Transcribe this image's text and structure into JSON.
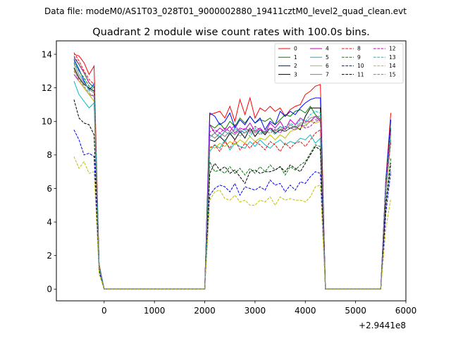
{
  "suptitle": "Data file: modeM0/AS1T03_028T01_9000002880_19411cztM0_level2_quad_clean.evt",
  "chart_data": {
    "type": "line",
    "title": "Quadrant 2 module wise count rates with 100.0s bins.",
    "xlabel": "",
    "ylabel": "",
    "x_offset_label": "+2.9441e8",
    "xlim": [
      -950,
      6000
    ],
    "ylim": [
      -0.7,
      14.8
    ],
    "xticks": [
      0,
      1000,
      2000,
      3000,
      4000,
      5000,
      6000
    ],
    "xtick_labels": [
      "0",
      "1000",
      "2000",
      "3000",
      "4000",
      "5000",
      "6000"
    ],
    "yticks": [
      0,
      2,
      4,
      6,
      8,
      10,
      12,
      14
    ],
    "ytick_labels": [
      "0",
      "2",
      "4",
      "6",
      "8",
      "10",
      "12",
      "14"
    ],
    "grid": false,
    "legend_position": "top-right",
    "x": [
      -600,
      -500,
      -400,
      -300,
      -200,
      -100,
      0,
      100,
      200,
      300,
      400,
      500,
      600,
      700,
      800,
      900,
      1000,
      1100,
      1200,
      1300,
      1400,
      1500,
      1600,
      1700,
      1800,
      1900,
      2000,
      2100,
      2200,
      2300,
      2400,
      2500,
      2600,
      2700,
      2800,
      2900,
      3000,
      3100,
      3200,
      3300,
      3400,
      3500,
      3600,
      3700,
      3800,
      3900,
      4000,
      4100,
      4200,
      4300,
      4400,
      4500,
      4600,
      4700,
      4800,
      4900,
      5000,
      5100,
      5200,
      5300,
      5400,
      5500,
      5600,
      5700
    ],
    "series": [
      {
        "name": "0",
        "color": "#ff0000",
        "dash": "solid",
        "values": [
          14.0,
          13.9,
          13.5,
          12.8,
          13.3,
          1.5,
          0,
          0,
          0,
          0,
          0,
          0,
          0,
          0,
          0,
          0,
          0,
          0,
          0,
          0,
          0,
          0,
          0,
          0,
          0,
          0,
          0,
          10.4,
          10.5,
          10.6,
          10.2,
          10.9,
          10.0,
          11.3,
          10.4,
          11.4,
          10.2,
          10.8,
          10.6,
          10.9,
          10.6,
          10.8,
          10.3,
          10.7,
          10.9,
          11.0,
          11.6,
          11.8,
          12.1,
          12.2,
          0,
          0,
          0,
          0,
          0,
          0,
          0,
          0,
          0,
          0,
          0,
          0,
          6.5,
          10.5
        ]
      },
      {
        "name": "1",
        "color": "#008000",
        "dash": "solid",
        "values": [
          13.8,
          13.4,
          12.9,
          12.3,
          12.0,
          1.4,
          0,
          0,
          0,
          0,
          0,
          0,
          0,
          0,
          0,
          0,
          0,
          0,
          0,
          0,
          0,
          0,
          0,
          0,
          0,
          0,
          0,
          9.8,
          9.6,
          9.9,
          9.5,
          10.0,
          9.7,
          10.2,
          9.9,
          10.3,
          9.9,
          10.1,
          10.0,
          10.2,
          9.8,
          10.1,
          10.4,
          10.3,
          10.6,
          10.7,
          10.5,
          10.9,
          10.4,
          10.1,
          0,
          0,
          0,
          0,
          0,
          0,
          0,
          0,
          0,
          0,
          0,
          0,
          6.0,
          9.6
        ]
      },
      {
        "name": "2",
        "color": "#0000ff",
        "dash": "solid",
        "values": [
          13.7,
          13.1,
          12.4,
          11.9,
          12.2,
          1.4,
          0,
          0,
          0,
          0,
          0,
          0,
          0,
          0,
          0,
          0,
          0,
          0,
          0,
          0,
          0,
          0,
          0,
          0,
          0,
          0,
          0,
          10.5,
          10.3,
          9.8,
          10.0,
          10.5,
          9.6,
          10.1,
          9.8,
          10.3,
          9.9,
          10.2,
          9.5,
          10.0,
          9.8,
          10.6,
          10.3,
          10.6,
          10.4,
          10.8,
          11.1,
          11.3,
          11.4,
          11.4,
          0,
          0,
          0,
          0,
          0,
          0,
          0,
          0,
          0,
          0,
          0,
          0,
          6.4,
          10.1
        ]
      },
      {
        "name": "3",
        "color": "#000000",
        "dash": "solid",
        "values": [
          13.2,
          12.6,
          12.2,
          12.0,
          11.8,
          1.4,
          0,
          0,
          0,
          0,
          0,
          0,
          0,
          0,
          0,
          0,
          0,
          0,
          0,
          0,
          0,
          0,
          0,
          0,
          0,
          0,
          0,
          8.9,
          8.8,
          9.1,
          8.8,
          9.3,
          8.9,
          9.4,
          9.0,
          9.6,
          9.1,
          9.5,
          9.2,
          9.6,
          9.3,
          9.5,
          9.4,
          9.6,
          9.7,
          9.5,
          10.3,
          10.8,
          10.8,
          10.8,
          0,
          0,
          0,
          0,
          0,
          0,
          0,
          0,
          0,
          0,
          0,
          0,
          6.2,
          9.6
        ]
      },
      {
        "name": "4",
        "color": "#bf00bf",
        "dash": "solid",
        "values": [
          12.8,
          12.4,
          12.0,
          11.6,
          11.5,
          1.3,
          0,
          0,
          0,
          0,
          0,
          0,
          0,
          0,
          0,
          0,
          0,
          0,
          0,
          0,
          0,
          0,
          0,
          0,
          0,
          0,
          0,
          9.8,
          9.3,
          9.6,
          9.4,
          9.7,
          9.3,
          9.6,
          9.5,
          9.9,
          9.4,
          9.6,
          9.3,
          9.9,
          9.6,
          10.0,
          9.5,
          10.1,
          9.8,
          10.2,
          10.0,
          10.0,
          10.3,
          10.0,
          0,
          0,
          0,
          0,
          0,
          0,
          0,
          0,
          0,
          0,
          0,
          0,
          6.1,
          9.4
        ]
      },
      {
        "name": "5",
        "color": "#00bfbf",
        "dash": "solid",
        "values": [
          12.4,
          11.6,
          11.2,
          10.8,
          11.1,
          1.3,
          0,
          0,
          0,
          0,
          0,
          0,
          0,
          0,
          0,
          0,
          0,
          0,
          0,
          0,
          0,
          0,
          0,
          0,
          0,
          0,
          0,
          8.2,
          8.6,
          8.4,
          8.9,
          8.3,
          8.7,
          8.5,
          8.4,
          8.8,
          8.5,
          8.9,
          8.6,
          8.4,
          8.7,
          8.9,
          8.6,
          8.8,
          8.7,
          9.0,
          8.9,
          9.2,
          8.7,
          9.0,
          0,
          0,
          0,
          0,
          0,
          0,
          0,
          0,
          0,
          0,
          0,
          0,
          5.8,
          8.9
        ]
      },
      {
        "name": "6",
        "color": "#bfbf00",
        "dash": "solid",
        "values": [
          13.1,
          12.4,
          12.0,
          11.6,
          11.2,
          1.3,
          0,
          0,
          0,
          0,
          0,
          0,
          0,
          0,
          0,
          0,
          0,
          0,
          0,
          0,
          0,
          0,
          0,
          0,
          0,
          0,
          0,
          8.5,
          8.4,
          8.7,
          8.5,
          8.8,
          8.6,
          8.9,
          8.7,
          9.1,
          8.8,
          9.0,
          8.9,
          9.2,
          8.9,
          9.2,
          9.0,
          9.4,
          9.5,
          9.6,
          9.8,
          10.0,
          9.9,
          10.0,
          0,
          0,
          0,
          0,
          0,
          0,
          0,
          0,
          0,
          0,
          0,
          0,
          6.0,
          9.2
        ]
      },
      {
        "name": "7",
        "color": "#808080",
        "dash": "solid",
        "values": [
          13.4,
          12.8,
          12.3,
          11.9,
          11.7,
          1.4,
          0,
          0,
          0,
          0,
          0,
          0,
          0,
          0,
          0,
          0,
          0,
          0,
          0,
          0,
          0,
          0,
          0,
          0,
          0,
          0,
          0,
          9.2,
          9.0,
          9.3,
          9.1,
          9.4,
          9.2,
          9.5,
          9.3,
          9.6,
          9.3,
          9.5,
          9.3,
          9.6,
          9.4,
          9.7,
          9.5,
          9.8,
          9.6,
          9.9,
          9.9,
          10.2,
          10.3,
          10.3,
          0,
          0,
          0,
          0,
          0,
          0,
          0,
          0,
          0,
          0,
          0,
          0,
          6.1,
          9.4
        ]
      },
      {
        "name": "8",
        "color": "#ff0000",
        "dash": "dashed",
        "values": [
          14.1,
          13.6,
          13.0,
          12.5,
          12.2,
          1.4,
          0,
          0,
          0,
          0,
          0,
          0,
          0,
          0,
          0,
          0,
          0,
          0,
          0,
          0,
          0,
          0,
          0,
          0,
          0,
          0,
          0,
          8.4,
          8.6,
          8.2,
          8.8,
          8.4,
          8.9,
          8.3,
          8.7,
          8.4,
          8.8,
          8.6,
          8.3,
          8.8,
          8.6,
          8.2,
          8.7,
          8.4,
          8.7,
          8.8,
          8.5,
          8.9,
          9.3,
          9.5,
          0,
          0,
          0,
          0,
          0,
          0,
          0,
          0,
          0,
          0,
          0,
          0,
          5.9,
          8.8
        ]
      },
      {
        "name": "9",
        "color": "#008000",
        "dash": "dashed",
        "values": [
          13.5,
          13.0,
          12.6,
          12.1,
          11.9,
          1.4,
          0,
          0,
          0,
          0,
          0,
          0,
          0,
          0,
          0,
          0,
          0,
          0,
          0,
          0,
          0,
          0,
          0,
          0,
          0,
          0,
          0,
          7.6,
          7.0,
          7.1,
          6.9,
          7.3,
          6.9,
          7.2,
          6.8,
          7.2,
          6.9,
          7.3,
          7.0,
          7.4,
          7.1,
          7.3,
          6.8,
          7.3,
          7.1,
          7.4,
          7.6,
          8.1,
          8.6,
          8.5,
          0,
          0,
          0,
          0,
          0,
          0,
          0,
          0,
          0,
          0,
          0,
          0,
          5.2,
          7.8
        ]
      },
      {
        "name": "10",
        "color": "#0000ff",
        "dash": "dashed",
        "values": [
          9.5,
          8.9,
          8.0,
          8.1,
          7.9,
          1.0,
          0,
          0,
          0,
          0,
          0,
          0,
          0,
          0,
          0,
          0,
          0,
          0,
          0,
          0,
          0,
          0,
          0,
          0,
          0,
          0,
          0,
          5.6,
          6.0,
          6.2,
          6.1,
          5.8,
          6.3,
          5.6,
          6.1,
          6.0,
          5.9,
          6.1,
          5.9,
          6.5,
          6.2,
          6.3,
          5.8,
          6.2,
          5.9,
          6.4,
          6.3,
          6.7,
          7.0,
          6.9,
          0,
          0,
          0,
          0,
          0,
          0,
          0,
          0,
          0,
          0,
          0,
          0,
          4.5,
          7.0
        ]
      },
      {
        "name": "11",
        "color": "#000000",
        "dash": "dashed",
        "values": [
          11.3,
          10.2,
          9.9,
          9.8,
          9.2,
          1.2,
          0,
          0,
          0,
          0,
          0,
          0,
          0,
          0,
          0,
          0,
          0,
          0,
          0,
          0,
          0,
          0,
          0,
          0,
          0,
          0,
          0,
          6.9,
          7.5,
          7.1,
          7.3,
          6.9,
          7.1,
          6.7,
          6.3,
          7.0,
          7.1,
          6.9,
          7.0,
          7.0,
          7.1,
          7.3,
          7.0,
          7.4,
          7.2,
          7.0,
          7.5,
          8.0,
          8.5,
          8.3,
          0,
          0,
          0,
          0,
          0,
          0,
          0,
          0,
          0,
          0,
          0,
          0,
          5.0,
          7.5
        ]
      },
      {
        "name": "12",
        "color": "#bf00bf",
        "dash": "dashed",
        "values": [
          13.9,
          13.4,
          12.9,
          12.3,
          12.0,
          1.4,
          0,
          0,
          0,
          0,
          0,
          0,
          0,
          0,
          0,
          0,
          0,
          0,
          0,
          0,
          0,
          0,
          0,
          0,
          0,
          0,
          0,
          9.4,
          9.5,
          9.3,
          9.6,
          9.4,
          9.8,
          9.3,
          9.6,
          9.4,
          9.7,
          9.5,
          9.4,
          9.6,
          9.5,
          9.3,
          9.7,
          9.6,
          9.5,
          9.8,
          9.6,
          9.7,
          10.0,
          10.1,
          0,
          0,
          0,
          0,
          0,
          0,
          0,
          0,
          0,
          0,
          0,
          0,
          6.1,
          9.5
        ]
      },
      {
        "name": "13",
        "color": "#00bfbf",
        "dash": "dashed",
        "values": [
          13.6,
          13.0,
          12.5,
          11.8,
          12.3,
          1.4,
          0,
          0,
          0,
          0,
          0,
          0,
          0,
          0,
          0,
          0,
          0,
          0,
          0,
          0,
          0,
          0,
          0,
          0,
          0,
          0,
          0,
          9.0,
          9.3,
          9.1,
          9.4,
          9.2,
          9.6,
          9.3,
          9.5,
          9.1,
          9.6,
          9.3,
          9.4,
          9.5,
          9.2,
          9.7,
          9.6,
          9.9,
          9.7,
          10.1,
          10.0,
          10.4,
          10.6,
          10.5,
          0,
          0,
          0,
          0,
          0,
          0,
          0,
          0,
          0,
          0,
          0,
          0,
          6.2,
          9.6
        ]
      },
      {
        "name": "14",
        "color": "#bfbf00",
        "dash": "dashed",
        "values": [
          7.9,
          7.2,
          7.6,
          6.9,
          7.0,
          0.9,
          0,
          0,
          0,
          0,
          0,
          0,
          0,
          0,
          0,
          0,
          0,
          0,
          0,
          0,
          0,
          0,
          0,
          0,
          0,
          0,
          0,
          5.3,
          5.8,
          5.9,
          5.4,
          5.3,
          5.6,
          5.2,
          5.3,
          5.0,
          5.0,
          5.3,
          5.2,
          5.5,
          5.0,
          5.5,
          5.3,
          5.4,
          5.3,
          5.3,
          5.2,
          5.5,
          6.1,
          6.2,
          0,
          0,
          0,
          0,
          0,
          0,
          0,
          0,
          0,
          0,
          0,
          0,
          3.6,
          5.4
        ]
      },
      {
        "name": "15",
        "color": "#808080",
        "dash": "dashed",
        "values": [
          13.0,
          12.5,
          12.1,
          11.7,
          11.5,
          1.3,
          0,
          0,
          0,
          0,
          0,
          0,
          0,
          0,
          0,
          0,
          0,
          0,
          0,
          0,
          0,
          0,
          0,
          0,
          0,
          0,
          0,
          9.1,
          9.3,
          9.0,
          9.4,
          9.2,
          9.5,
          9.1,
          9.4,
          9.3,
          9.5,
          9.2,
          9.4,
          9.3,
          9.5,
          9.6,
          9.4,
          9.6,
          9.5,
          9.8,
          9.7,
          10.0,
          10.1,
          10.2,
          0,
          0,
          0,
          0,
          0,
          0,
          0,
          0,
          0,
          0,
          0,
          0,
          6.0,
          9.3
        ]
      }
    ]
  }
}
